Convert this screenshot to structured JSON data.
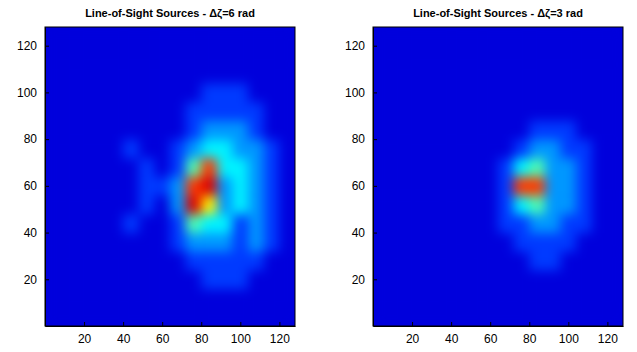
{
  "chart_data": [
    {
      "type": "heatmap",
      "title": "Line-of-Sight Sources - Δζ=6 rad",
      "xlim": [
        0,
        128
      ],
      "ylim": [
        0,
        128
      ],
      "xticks": [
        20,
        40,
        60,
        80,
        100,
        120
      ],
      "yticks": [
        20,
        40,
        60,
        80,
        100,
        120
      ],
      "x": [
        0,
        8,
        16,
        24,
        32,
        40,
        48,
        56,
        64,
        72,
        80,
        88,
        96,
        104,
        112,
        120,
        128
      ],
      "y": [
        0,
        8,
        16,
        24,
        32,
        40,
        48,
        56,
        64,
        72,
        80,
        88,
        96,
        104,
        112,
        120,
        128
      ],
      "color_range": [
        0,
        11
      ],
      "cells": [
        [
          1,
          1,
          1,
          1,
          1,
          1,
          1,
          1,
          1,
          1,
          1,
          1,
          1,
          1,
          1,
          1
        ],
        [
          1,
          1,
          1,
          1,
          1,
          1,
          1,
          1,
          1,
          1,
          1,
          1,
          1,
          1,
          1,
          1
        ],
        [
          1,
          1,
          1,
          1,
          1,
          1,
          1,
          1,
          1,
          1,
          2,
          2,
          2,
          1,
          1,
          1
        ],
        [
          1,
          1,
          1,
          1,
          1,
          1,
          1,
          1,
          1,
          2,
          2,
          2,
          2,
          2,
          1,
          1
        ],
        [
          1,
          1,
          1,
          1,
          1,
          1,
          1,
          1,
          2,
          3,
          3,
          3,
          2,
          3,
          2,
          1
        ],
        [
          1,
          1,
          1,
          1,
          1,
          2,
          1,
          1,
          2,
          5,
          4,
          4,
          2,
          3,
          2,
          1
        ],
        [
          1,
          1,
          1,
          1,
          1,
          1,
          2,
          1,
          3,
          10,
          7,
          3,
          4,
          3,
          2,
          1
        ],
        [
          1,
          1,
          1,
          1,
          1,
          1,
          2,
          2,
          3,
          9,
          10,
          3,
          4,
          3,
          2,
          1
        ],
        [
          1,
          1,
          1,
          1,
          1,
          1,
          2,
          1,
          2,
          5,
          9,
          4,
          4,
          3,
          2,
          1
        ],
        [
          1,
          1,
          1,
          1,
          1,
          2,
          1,
          1,
          2,
          3,
          4,
          4,
          3,
          3,
          2,
          1
        ],
        [
          1,
          1,
          1,
          1,
          1,
          1,
          1,
          1,
          1,
          2,
          3,
          3,
          3,
          2,
          1,
          1
        ],
        [
          1,
          1,
          1,
          1,
          1,
          1,
          1,
          1,
          1,
          2,
          2,
          2,
          2,
          2,
          1,
          1
        ],
        [
          1,
          1,
          1,
          1,
          1,
          1,
          1,
          1,
          1,
          1,
          2,
          2,
          2,
          1,
          1,
          1
        ],
        [
          1,
          1,
          1,
          1,
          1,
          1,
          1,
          1,
          1,
          1,
          1,
          1,
          1,
          1,
          1,
          1
        ],
        [
          1,
          1,
          1,
          1,
          1,
          1,
          1,
          1,
          1,
          1,
          1,
          1,
          1,
          1,
          1,
          1
        ],
        [
          1,
          1,
          1,
          1,
          1,
          1,
          1,
          1,
          1,
          1,
          1,
          1,
          1,
          1,
          1,
          1
        ]
      ]
    },
    {
      "type": "heatmap",
      "title": "Line-of-Sight Sources - Δζ=3 rad",
      "xlim": [
        0,
        128
      ],
      "ylim": [
        0,
        128
      ],
      "xticks": [
        20,
        40,
        60,
        80,
        100,
        120
      ],
      "yticks": [
        20,
        40,
        60,
        80,
        100,
        120
      ],
      "x": [
        0,
        8,
        16,
        24,
        32,
        40,
        48,
        56,
        64,
        72,
        80,
        88,
        96,
        104,
        112,
        120,
        128
      ],
      "y": [
        0,
        8,
        16,
        24,
        32,
        40,
        48,
        56,
        64,
        72,
        80,
        88,
        96,
        104,
        112,
        120,
        128
      ],
      "color_range": [
        0,
        11
      ],
      "cells": [
        [
          1,
          1,
          1,
          1,
          1,
          1,
          1,
          1,
          1,
          1,
          1,
          1,
          1,
          1,
          1,
          1
        ],
        [
          1,
          1,
          1,
          1,
          1,
          1,
          1,
          1,
          1,
          1,
          1,
          1,
          1,
          1,
          1,
          1
        ],
        [
          1,
          1,
          1,
          1,
          1,
          1,
          1,
          1,
          1,
          1,
          1,
          1,
          1,
          1,
          1,
          1
        ],
        [
          1,
          1,
          1,
          1,
          1,
          1,
          1,
          1,
          1,
          1,
          2,
          2,
          1,
          1,
          1,
          1
        ],
        [
          1,
          1,
          1,
          1,
          1,
          1,
          1,
          1,
          1,
          2,
          2,
          2,
          2,
          1,
          1,
          1
        ],
        [
          1,
          1,
          1,
          1,
          1,
          1,
          1,
          1,
          2,
          2,
          3,
          3,
          2,
          2,
          1,
          1
        ],
        [
          1,
          1,
          1,
          1,
          1,
          1,
          1,
          1,
          2,
          4,
          5,
          3,
          3,
          2,
          1,
          1
        ],
        [
          1,
          1,
          1,
          1,
          1,
          1,
          1,
          1,
          2,
          9,
          9,
          3,
          3,
          2,
          1,
          1
        ],
        [
          1,
          1,
          1,
          1,
          1,
          1,
          1,
          1,
          2,
          4,
          5,
          3,
          3,
          2,
          1,
          1
        ],
        [
          1,
          1,
          1,
          1,
          1,
          1,
          1,
          1,
          1,
          2,
          3,
          3,
          2,
          2,
          1,
          1
        ],
        [
          1,
          1,
          1,
          1,
          1,
          1,
          1,
          1,
          1,
          1,
          2,
          2,
          2,
          1,
          1,
          1
        ],
        [
          1,
          1,
          1,
          1,
          1,
          1,
          1,
          1,
          1,
          1,
          1,
          1,
          1,
          1,
          1,
          1
        ],
        [
          1,
          1,
          1,
          1,
          1,
          1,
          1,
          1,
          1,
          1,
          1,
          1,
          1,
          1,
          1,
          1
        ],
        [
          1,
          1,
          1,
          1,
          1,
          1,
          1,
          1,
          1,
          1,
          1,
          1,
          1,
          1,
          1,
          1
        ],
        [
          1,
          1,
          1,
          1,
          1,
          1,
          1,
          1,
          1,
          1,
          1,
          1,
          1,
          1,
          1,
          1
        ],
        [
          1,
          1,
          1,
          1,
          1,
          1,
          1,
          1,
          1,
          1,
          1,
          1,
          1,
          1,
          1,
          1
        ]
      ]
    }
  ]
}
